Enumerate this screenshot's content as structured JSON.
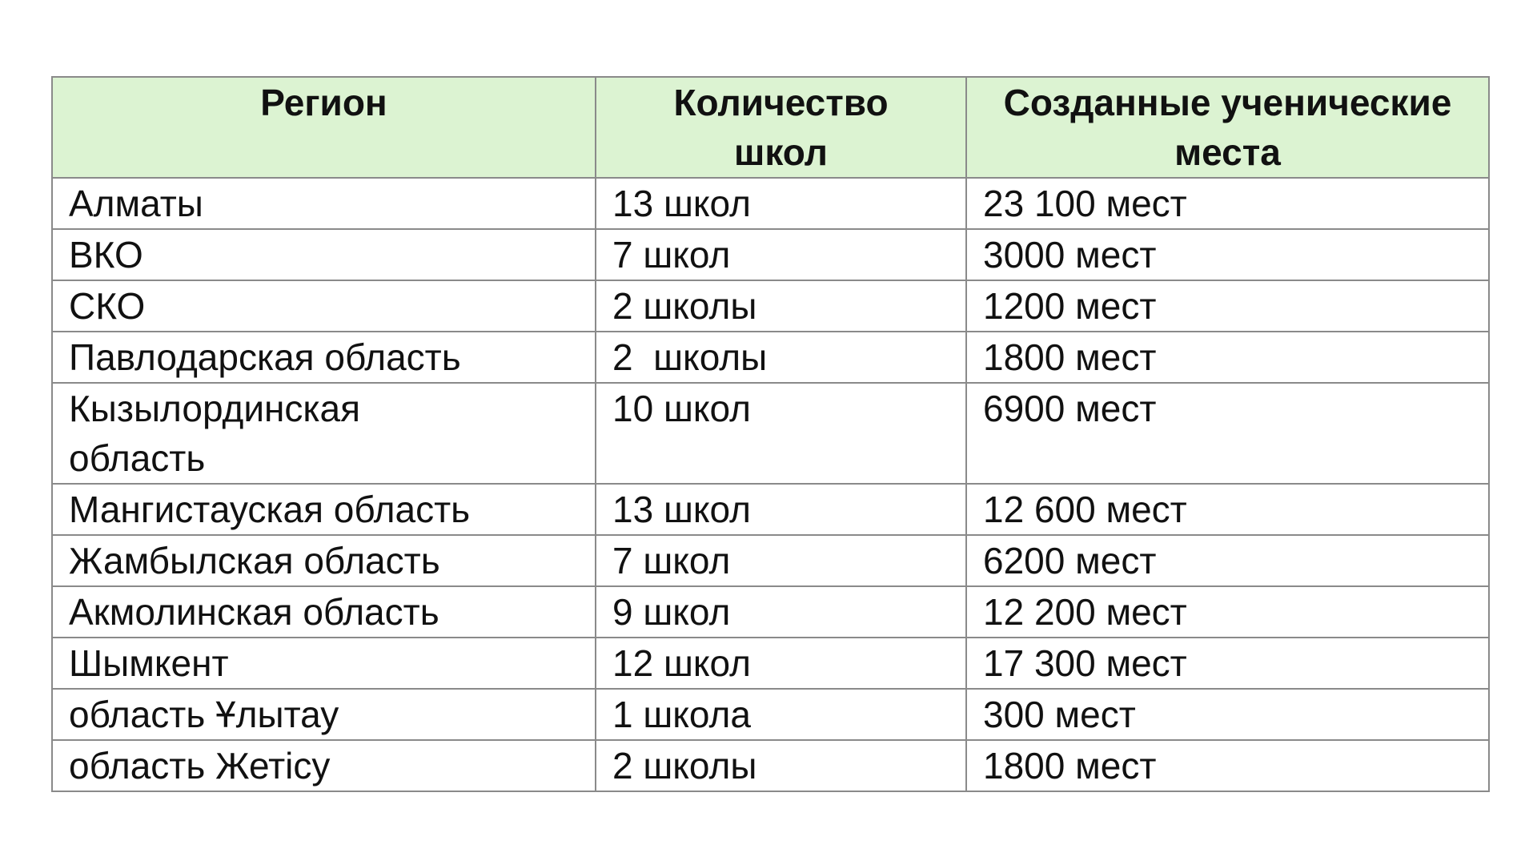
{
  "table": {
    "headers": [
      "Регион",
      "Количество школ",
      "Созданные ученические места"
    ],
    "rows": [
      [
        "Алматы",
        "13 школ",
        "23 100 мест"
      ],
      [
        "ВКО",
        "7 школ",
        "3000 мест"
      ],
      [
        "СКО",
        "2 школы",
        "1200 мест"
      ],
      [
        "Павлодарская область",
        "2  школы",
        "1800 мест"
      ],
      [
        "Кызылординская область",
        "10 школ",
        "6900 мест"
      ],
      [
        "Мангистауская область",
        "13 школ",
        "12 600 мест"
      ],
      [
        "Жамбылская область",
        "7 школ",
        "6200 мест"
      ],
      [
        "Акмолинская область",
        "9 школ",
        "12 200 мест"
      ],
      [
        "Шымкент",
        "12 школ",
        "17 300 мест"
      ],
      [
        "область Ұлытау",
        "1 школа",
        "300 мест"
      ],
      [
        "область Жетісу",
        "2 школы",
        "1800 мест"
      ]
    ]
  },
  "colors": {
    "header_bg": "#dcf3d2",
    "border": "#8a8a8a"
  }
}
